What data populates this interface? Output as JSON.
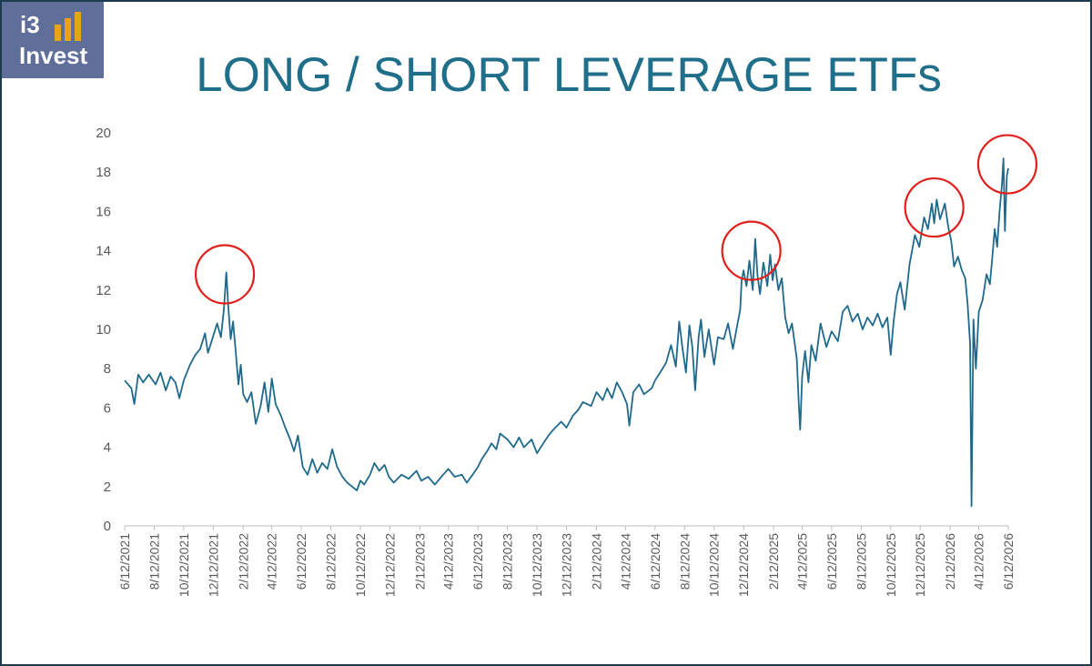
{
  "logo": {
    "line1": "i3",
    "line2": "Invest",
    "bar_color": "#e8a317"
  },
  "header": {
    "title": "LONG / SHORT LEVERAGE ETFs"
  },
  "colors": {
    "line": "#1f6a8c",
    "highlight": "#e0201b",
    "axis_text": "#595959",
    "title": "#1f6f8b"
  },
  "chart_data": {
    "type": "line",
    "title": "LONG / SHORT LEVERAGE ETFs",
    "xlabel": "",
    "ylabel": "",
    "ylim": [
      0,
      20
    ],
    "xlim": [
      "2021-06-12",
      "2026-06-12"
    ],
    "yticks": [
      "0",
      "2",
      "4",
      "6",
      "8",
      "10",
      "12",
      "14",
      "16",
      "18",
      "20"
    ],
    "xticks": [
      "6/12/2021",
      "8/12/2021",
      "10/12/2021",
      "12/12/2021",
      "2/12/2022",
      "4/12/2022",
      "6/12/2022",
      "8/12/2022",
      "10/12/2022",
      "12/12/2022",
      "2/12/2023",
      "4/12/2023",
      "6/12/2023",
      "8/12/2023",
      "10/12/2023",
      "12/12/2023",
      "2/12/2024",
      "4/12/2024",
      "6/12/2024",
      "8/12/2024",
      "10/12/2024",
      "12/12/2024",
      "2/12/2025",
      "4/12/2025",
      "6/12/2025",
      "8/12/2025",
      "10/12/2025",
      "12/12/2025",
      "2/12/2026",
      "4/12/2026",
      "6/12/2026"
    ],
    "grid": false,
    "series": [
      {
        "color": "#1f6a8c",
        "points": [
          [
            "2021-06-12",
            7.4
          ],
          [
            "2021-06-26",
            7.0
          ],
          [
            "2021-07-02",
            6.2
          ],
          [
            "2021-07-10",
            7.7
          ],
          [
            "2021-07-20",
            7.3
          ],
          [
            "2021-08-01",
            7.7
          ],
          [
            "2021-08-15",
            7.2
          ],
          [
            "2021-08-25",
            7.8
          ],
          [
            "2021-09-05",
            6.9
          ],
          [
            "2021-09-15",
            7.6
          ],
          [
            "2021-09-25",
            7.3
          ],
          [
            "2021-10-03",
            6.5
          ],
          [
            "2021-10-12",
            7.4
          ],
          [
            "2021-10-25",
            8.2
          ],
          [
            "2021-11-05",
            8.7
          ],
          [
            "2021-11-15",
            9.0
          ],
          [
            "2021-11-25",
            9.8
          ],
          [
            "2021-12-01",
            8.8
          ],
          [
            "2021-12-10",
            9.5
          ],
          [
            "2021-12-20",
            10.3
          ],
          [
            "2021-12-28",
            9.6
          ],
          [
            "2022-01-03",
            11.0
          ],
          [
            "2022-01-08",
            12.9
          ],
          [
            "2022-01-12",
            11.2
          ],
          [
            "2022-01-17",
            9.5
          ],
          [
            "2022-01-22",
            10.4
          ],
          [
            "2022-01-27",
            9.0
          ],
          [
            "2022-02-02",
            7.2
          ],
          [
            "2022-02-07",
            8.2
          ],
          [
            "2022-02-12",
            6.7
          ],
          [
            "2022-02-20",
            6.3
          ],
          [
            "2022-03-01",
            6.8
          ],
          [
            "2022-03-10",
            5.2
          ],
          [
            "2022-03-20",
            6.1
          ],
          [
            "2022-03-28",
            7.3
          ],
          [
            "2022-04-05",
            5.8
          ],
          [
            "2022-04-12",
            7.5
          ],
          [
            "2022-04-20",
            6.2
          ],
          [
            "2022-05-01",
            5.6
          ],
          [
            "2022-05-10",
            5.0
          ],
          [
            "2022-05-20",
            4.4
          ],
          [
            "2022-05-28",
            3.8
          ],
          [
            "2022-06-05",
            4.6
          ],
          [
            "2022-06-15",
            3.0
          ],
          [
            "2022-06-25",
            2.6
          ],
          [
            "2022-07-05",
            3.4
          ],
          [
            "2022-07-15",
            2.7
          ],
          [
            "2022-07-25",
            3.2
          ],
          [
            "2022-08-05",
            2.9
          ],
          [
            "2022-08-15",
            3.9
          ],
          [
            "2022-08-25",
            3.0
          ],
          [
            "2022-09-05",
            2.5
          ],
          [
            "2022-09-15",
            2.2
          ],
          [
            "2022-09-25",
            2.0
          ],
          [
            "2022-10-05",
            1.8
          ],
          [
            "2022-10-12",
            2.3
          ],
          [
            "2022-10-20",
            2.1
          ],
          [
            "2022-11-01",
            2.6
          ],
          [
            "2022-11-10",
            3.2
          ],
          [
            "2022-11-20",
            2.8
          ],
          [
            "2022-12-01",
            3.1
          ],
          [
            "2022-12-10",
            2.5
          ],
          [
            "2022-12-20",
            2.2
          ],
          [
            "2023-01-05",
            2.6
          ],
          [
            "2023-01-20",
            2.4
          ],
          [
            "2023-02-05",
            2.8
          ],
          [
            "2023-02-15",
            2.3
          ],
          [
            "2023-03-01",
            2.5
          ],
          [
            "2023-03-15",
            2.1
          ],
          [
            "2023-04-01",
            2.6
          ],
          [
            "2023-04-12",
            2.9
          ],
          [
            "2023-04-25",
            2.5
          ],
          [
            "2023-05-10",
            2.6
          ],
          [
            "2023-05-20",
            2.2
          ],
          [
            "2023-06-01",
            2.6
          ],
          [
            "2023-06-12",
            3.0
          ],
          [
            "2023-06-20",
            3.4
          ],
          [
            "2023-07-01",
            3.8
          ],
          [
            "2023-07-10",
            4.2
          ],
          [
            "2023-07-20",
            3.9
          ],
          [
            "2023-07-28",
            4.7
          ],
          [
            "2023-08-12",
            4.4
          ],
          [
            "2023-08-25",
            4.0
          ],
          [
            "2023-09-05",
            4.5
          ],
          [
            "2023-09-15",
            4.0
          ],
          [
            "2023-10-01",
            4.4
          ],
          [
            "2023-10-12",
            3.7
          ],
          [
            "2023-10-25",
            4.2
          ],
          [
            "2023-11-05",
            4.6
          ],
          [
            "2023-11-15",
            4.9
          ],
          [
            "2023-12-01",
            5.3
          ],
          [
            "2023-12-12",
            5.0
          ],
          [
            "2023-12-25",
            5.6
          ],
          [
            "2024-01-05",
            5.9
          ],
          [
            "2024-01-15",
            6.3
          ],
          [
            "2024-02-01",
            6.1
          ],
          [
            "2024-02-12",
            6.8
          ],
          [
            "2024-02-25",
            6.4
          ],
          [
            "2024-03-05",
            7.0
          ],
          [
            "2024-03-15",
            6.5
          ],
          [
            "2024-03-25",
            7.3
          ],
          [
            "2024-04-05",
            6.8
          ],
          [
            "2024-04-15",
            6.2
          ],
          [
            "2024-04-20",
            5.1
          ],
          [
            "2024-04-28",
            6.8
          ],
          [
            "2024-05-10",
            7.2
          ],
          [
            "2024-05-20",
            6.7
          ],
          [
            "2024-06-05",
            7.0
          ],
          [
            "2024-06-12",
            7.4
          ],
          [
            "2024-06-25",
            7.9
          ],
          [
            "2024-07-05",
            8.3
          ],
          [
            "2024-07-15",
            9.2
          ],
          [
            "2024-07-25",
            8.1
          ],
          [
            "2024-08-01",
            10.4
          ],
          [
            "2024-08-08",
            9.0
          ],
          [
            "2024-08-15",
            7.8
          ],
          [
            "2024-08-22",
            10.2
          ],
          [
            "2024-08-28",
            9.1
          ],
          [
            "2024-09-03",
            6.9
          ],
          [
            "2024-09-10",
            9.6
          ],
          [
            "2024-09-15",
            10.5
          ],
          [
            "2024-09-22",
            8.6
          ],
          [
            "2024-10-01",
            10.0
          ],
          [
            "2024-10-12",
            8.2
          ],
          [
            "2024-10-20",
            9.6
          ],
          [
            "2024-11-01",
            9.5
          ],
          [
            "2024-11-10",
            10.3
          ],
          [
            "2024-11-20",
            9.0
          ],
          [
            "2024-11-28",
            10.1
          ],
          [
            "2024-12-05",
            11.0
          ],
          [
            "2024-12-08",
            12.5
          ],
          [
            "2024-12-12",
            13.0
          ],
          [
            "2024-12-18",
            12.2
          ],
          [
            "2024-12-24",
            13.5
          ],
          [
            "2024-12-31",
            12.0
          ],
          [
            "2025-01-05",
            14.6
          ],
          [
            "2025-01-10",
            12.7
          ],
          [
            "2025-01-15",
            11.8
          ],
          [
            "2025-01-22",
            13.4
          ],
          [
            "2025-01-30",
            12.2
          ],
          [
            "2025-02-05",
            13.8
          ],
          [
            "2025-02-10",
            12.5
          ],
          [
            "2025-02-15",
            13.3
          ],
          [
            "2025-02-22",
            12.0
          ],
          [
            "2025-03-01",
            12.6
          ],
          [
            "2025-03-08",
            10.6
          ],
          [
            "2025-03-15",
            9.8
          ],
          [
            "2025-03-22",
            10.3
          ],
          [
            "2025-04-01",
            8.5
          ],
          [
            "2025-04-05",
            6.3
          ],
          [
            "2025-04-08",
            4.9
          ],
          [
            "2025-04-12",
            7.6
          ],
          [
            "2025-04-18",
            8.9
          ],
          [
            "2025-04-25",
            7.3
          ],
          [
            "2025-05-01",
            9.2
          ],
          [
            "2025-05-10",
            8.4
          ],
          [
            "2025-05-20",
            10.3
          ],
          [
            "2025-06-01",
            9.1
          ],
          [
            "2025-06-12",
            9.9
          ],
          [
            "2025-06-25",
            9.4
          ],
          [
            "2025-07-05",
            10.9
          ],
          [
            "2025-07-15",
            11.2
          ],
          [
            "2025-07-25",
            10.4
          ],
          [
            "2025-08-05",
            10.8
          ],
          [
            "2025-08-15",
            10.0
          ],
          [
            "2025-08-25",
            10.6
          ],
          [
            "2025-09-05",
            10.2
          ],
          [
            "2025-09-15",
            10.8
          ],
          [
            "2025-09-25",
            10.1
          ],
          [
            "2025-10-05",
            10.6
          ],
          [
            "2025-10-12",
            8.7
          ],
          [
            "2025-10-18",
            10.4
          ],
          [
            "2025-10-25",
            11.8
          ],
          [
            "2025-11-01",
            12.4
          ],
          [
            "2025-11-10",
            11.0
          ],
          [
            "2025-11-20",
            13.3
          ],
          [
            "2025-12-01",
            14.8
          ],
          [
            "2025-12-10",
            14.2
          ],
          [
            "2025-12-20",
            15.7
          ],
          [
            "2025-12-28",
            15.1
          ],
          [
            "2026-01-05",
            16.4
          ],
          [
            "2026-01-10",
            15.4
          ],
          [
            "2026-01-15",
            16.6
          ],
          [
            "2026-01-22",
            15.6
          ],
          [
            "2026-02-01",
            16.4
          ],
          [
            "2026-02-08",
            15.2
          ],
          [
            "2026-02-14",
            14.5
          ],
          [
            "2026-02-20",
            13.2
          ],
          [
            "2026-02-28",
            13.7
          ],
          [
            "2026-03-08",
            13.0
          ],
          [
            "2026-03-15",
            12.6
          ],
          [
            "2026-03-20",
            11.3
          ],
          [
            "2026-03-25",
            9.3
          ],
          [
            "2026-03-28",
            1.0
          ],
          [
            "2026-04-01",
            10.5
          ],
          [
            "2026-04-06",
            8.0
          ],
          [
            "2026-04-12",
            10.9
          ],
          [
            "2026-04-20",
            11.5
          ],
          [
            "2026-04-28",
            12.8
          ],
          [
            "2026-05-05",
            12.3
          ],
          [
            "2026-05-10",
            13.7
          ],
          [
            "2026-05-15",
            15.1
          ],
          [
            "2026-05-20",
            14.2
          ],
          [
            "2026-05-25",
            16.0
          ],
          [
            "2026-05-30",
            17.4
          ],
          [
            "2026-06-02",
            18.7
          ],
          [
            "2026-06-05",
            15.0
          ],
          [
            "2026-06-09",
            17.8
          ],
          [
            "2026-06-12",
            18.2
          ]
        ]
      }
    ],
    "highlights": [
      {
        "x": "2022-01-05",
        "y": 12.8
      },
      {
        "x": "2024-12-28",
        "y": 14.0
      },
      {
        "x": "2026-01-10",
        "y": 16.2
      },
      {
        "x": "2026-06-10",
        "y": 18.4
      }
    ]
  }
}
